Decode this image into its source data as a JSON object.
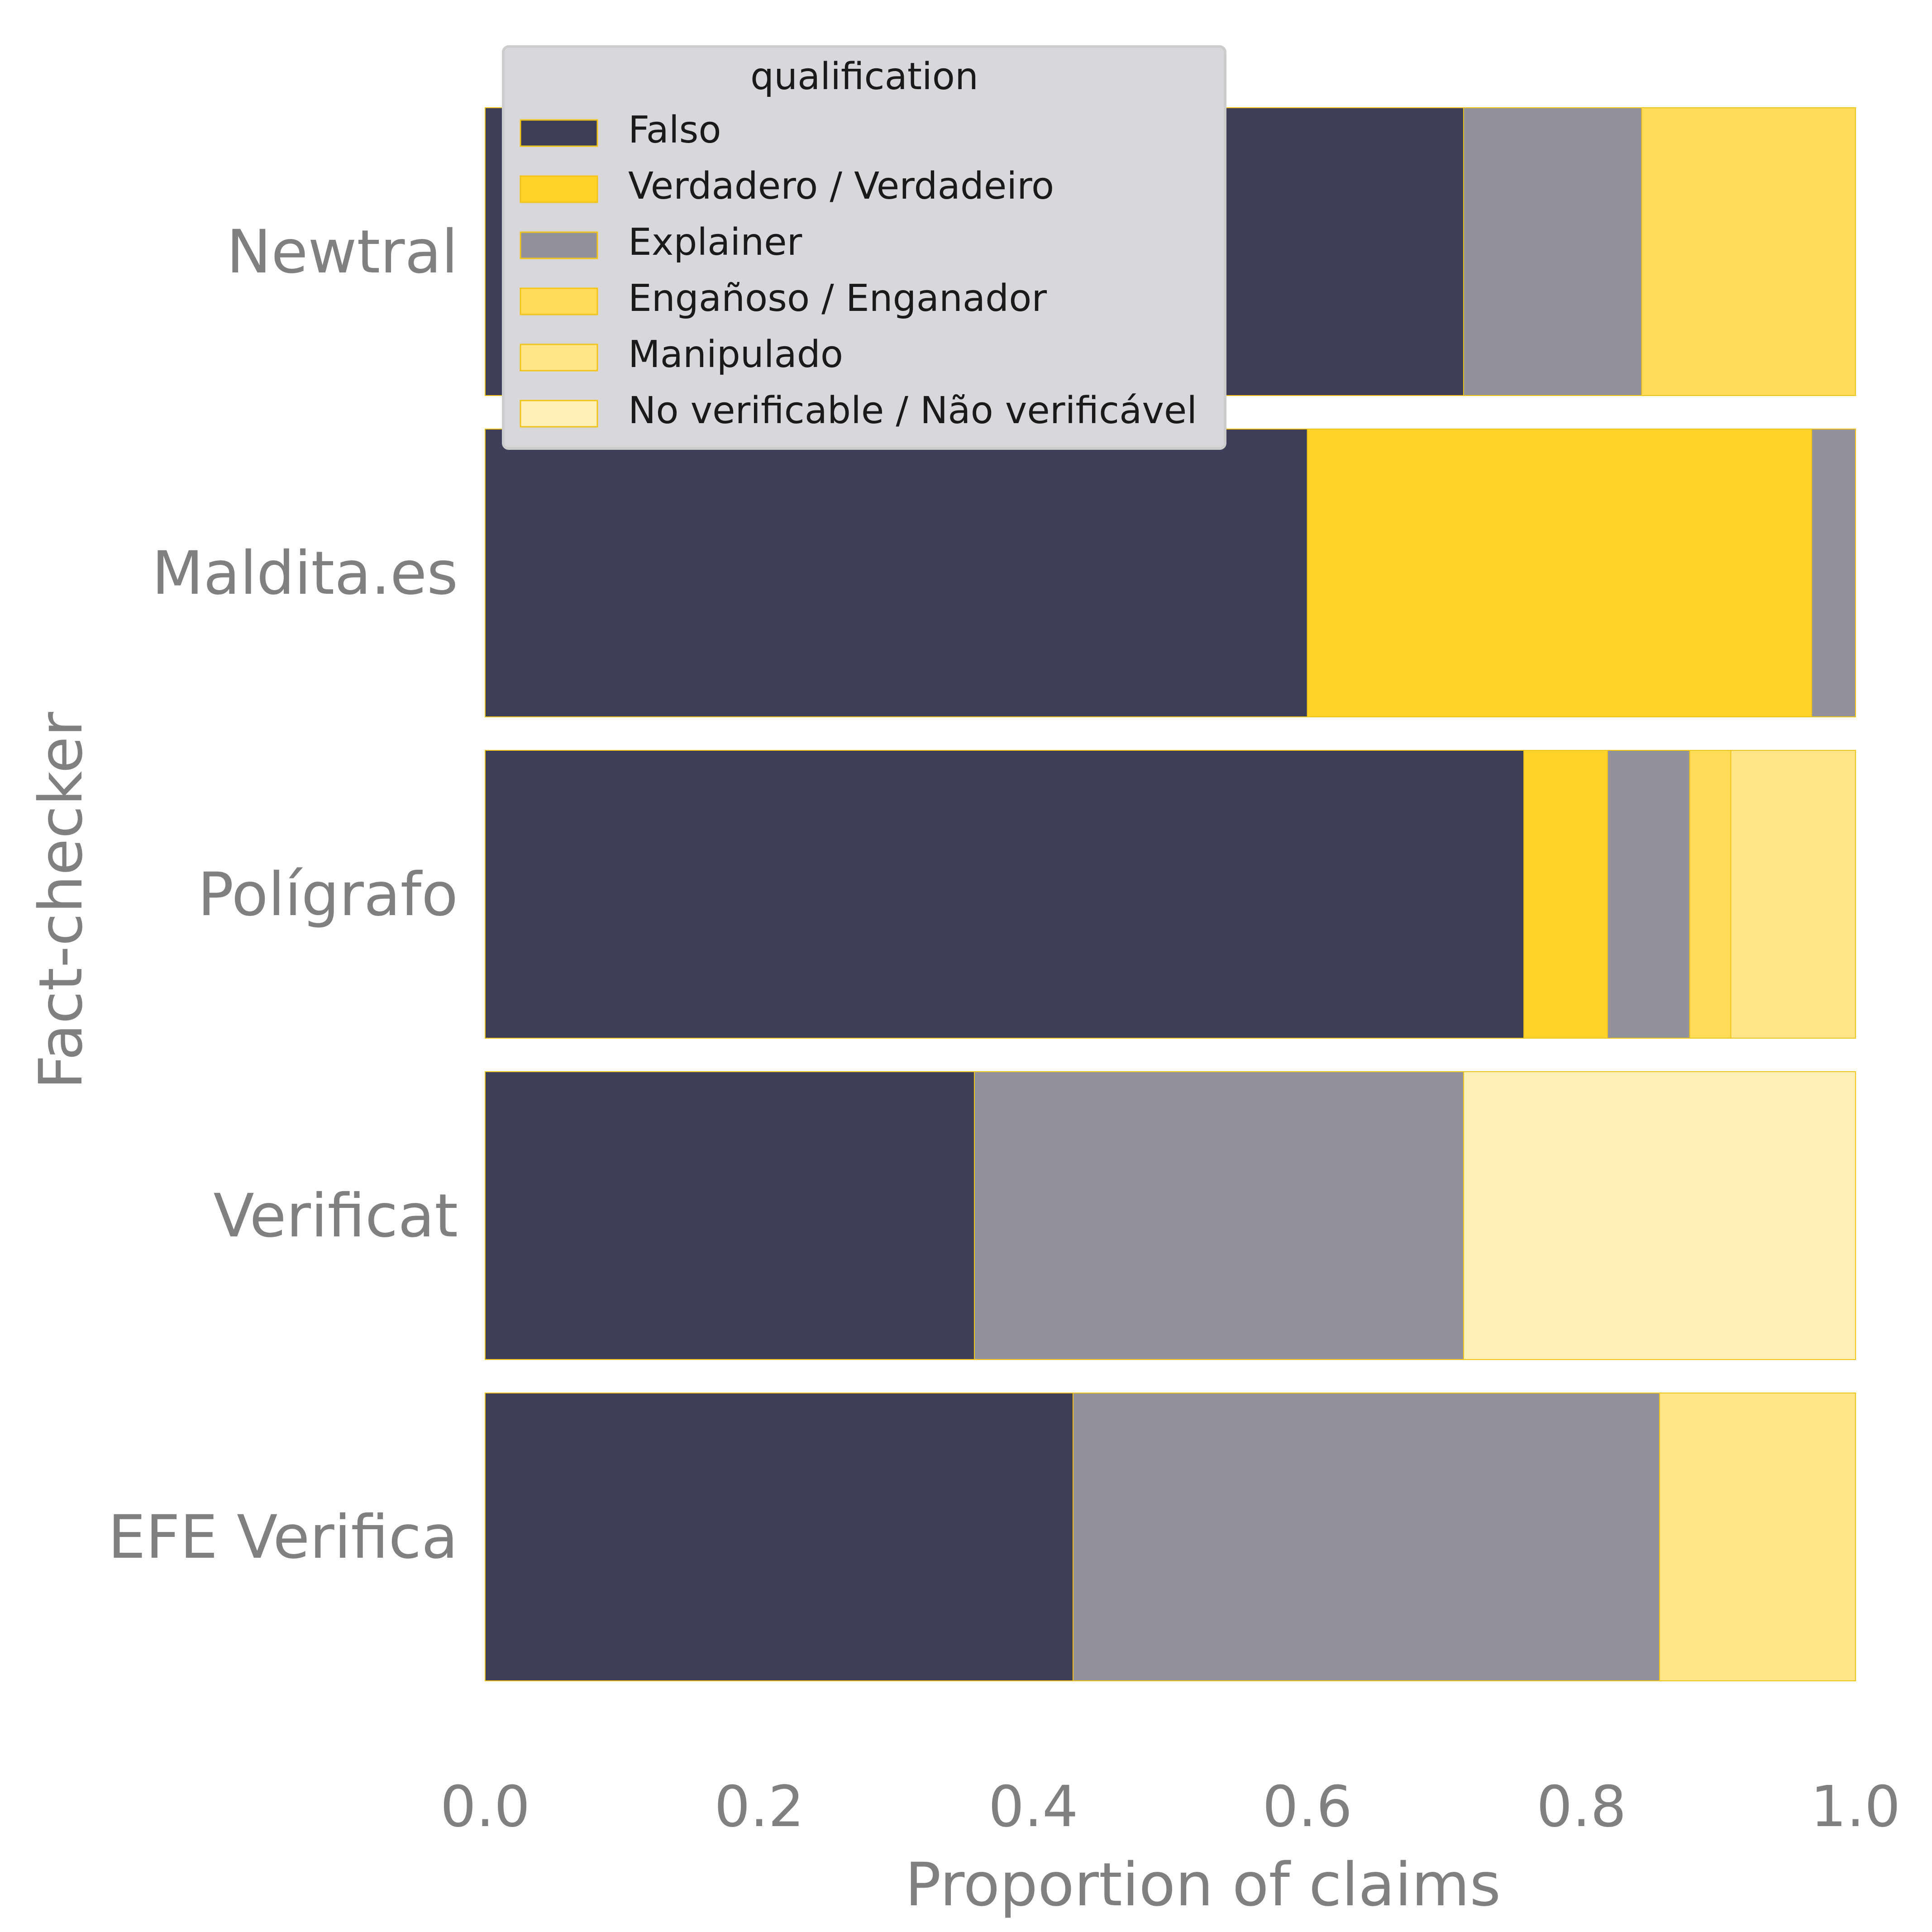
{
  "chart_data": {
    "type": "bar",
    "orientation": "horizontal",
    "stacked": true,
    "categories": [
      "Newtral",
      "Maldita.es",
      "Polígrafo",
      "Verificat",
      "EFE Verifica"
    ],
    "series": [
      {
        "name": "Falso",
        "color": "#3d3f59",
        "values": [
          0.714,
          0.6,
          0.758,
          0.357,
          0.429
        ]
      },
      {
        "name": "Verdadero / Verdadeiro",
        "color": "#fdd32a",
        "values": [
          0.0,
          0.368,
          0.061,
          0.0,
          0.0
        ]
      },
      {
        "name": "Explainer",
        "color": "#92929c",
        "values": [
          0.13,
          0.032,
          0.06,
          0.357,
          0.428
        ]
      },
      {
        "name": "Engañoso / Enganador",
        "color": "#ffdb57",
        "values": [
          0.156,
          0.0,
          0.03,
          0.0,
          0.0
        ]
      },
      {
        "name": "Manipulado",
        "color": "#ffe587",
        "values": [
          0.0,
          0.0,
          0.091,
          0.0,
          0.143
        ]
      },
      {
        "name": "No verificable / Não verificável",
        "color": "#fff0b7",
        "values": [
          0.0,
          0.0,
          0.0,
          0.286,
          0.0
        ]
      }
    ],
    "xlabel": "Proportion of claims",
    "ylabel": "Fact-checker",
    "xlim": [
      0,
      1
    ],
    "xticks": [
      "0.0",
      "0.2",
      "0.4",
      "0.6",
      "0.8",
      "1.0"
    ],
    "legend": {
      "title": "qualification",
      "placement": "top-left"
    },
    "grid": false,
    "edge_color": "#f0c419"
  }
}
